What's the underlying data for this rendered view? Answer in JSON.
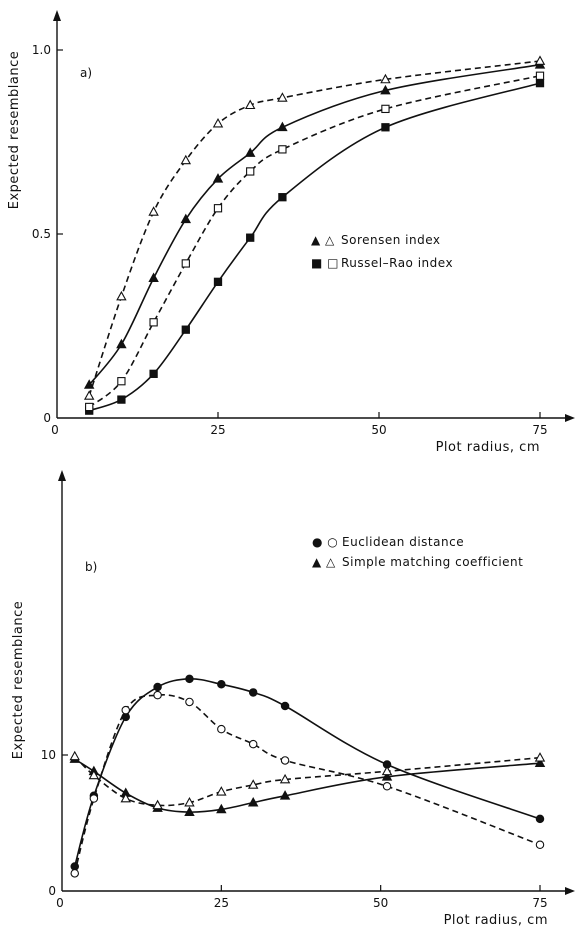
{
  "chart_data": [
    {
      "type": "line",
      "panel_label": "a)",
      "xlabel": "Plot radius, cm",
      "ylabel": "Expected resemblance",
      "xlim": [
        0,
        80
      ],
      "ylim": [
        0,
        1.05
      ],
      "xticks": [
        0,
        25,
        50,
        75
      ],
      "yticks": [
        0,
        0.5,
        1.0
      ],
      "xtick_labels": [
        "0",
        "25",
        "50",
        "75"
      ],
      "ytick_labels": [
        "0",
        "0.5",
        "1.0"
      ],
      "legend_position": "center-right",
      "legend": [
        {
          "symbols": "▲ △",
          "label": "Sorensen index"
        },
        {
          "symbols": "■ □",
          "label": "Russel–Rao index"
        }
      ],
      "series": [
        {
          "marker": "triangle-filled",
          "line": "solid",
          "x": [
            5,
            10,
            15,
            20,
            25,
            30,
            35,
            51,
            75
          ],
          "y": [
            0.09,
            0.2,
            0.38,
            0.54,
            0.65,
            0.72,
            0.79,
            0.89,
            0.96
          ]
        },
        {
          "marker": "triangle-open",
          "line": "dashed",
          "x": [
            5,
            10,
            15,
            20,
            25,
            30,
            35,
            51,
            75
          ],
          "y": [
            0.06,
            0.33,
            0.56,
            0.7,
            0.8,
            0.85,
            0.87,
            0.92,
            0.97
          ]
        },
        {
          "marker": "square-filled",
          "line": "solid",
          "x": [
            5,
            10,
            15,
            20,
            25,
            30,
            35,
            51,
            75
          ],
          "y": [
            0.02,
            0.05,
            0.12,
            0.24,
            0.37,
            0.49,
            0.6,
            0.79,
            0.91
          ]
        },
        {
          "marker": "square-open",
          "line": "dashed",
          "x": [
            5,
            10,
            15,
            20,
            25,
            30,
            35,
            51,
            75
          ],
          "y": [
            0.03,
            0.1,
            0.26,
            0.42,
            0.57,
            0.67,
            0.73,
            0.84,
            0.93
          ]
        }
      ]
    },
    {
      "type": "line",
      "panel_label": "b)",
      "xlabel": "Plot radius, cm",
      "ylabel": "Expected resemblance",
      "xlim": [
        0,
        80
      ],
      "ylim": [
        0,
        18
      ],
      "xticks": [
        0,
        25,
        50,
        75
      ],
      "yticks": [
        0,
        10
      ],
      "xtick_labels": [
        "0",
        "25",
        "50",
        "75"
      ],
      "ytick_labels": [
        "0",
        "10"
      ],
      "legend_position": "top-right",
      "legend": [
        {
          "symbols": "● ○",
          "label": "Euclidean distance"
        },
        {
          "symbols": "▲ △",
          "label": "Simple matching coefficient"
        }
      ],
      "series": [
        {
          "marker": "circle-filled",
          "line": "solid",
          "x": [
            2,
            5,
            10,
            15,
            20,
            25,
            30,
            35,
            51,
            75
          ],
          "y": [
            1.8,
            7.0,
            12.8,
            15.0,
            15.6,
            15.2,
            14.6,
            13.6,
            9.3,
            5.3
          ]
        },
        {
          "marker": "circle-open",
          "line": "dashed",
          "x": [
            2,
            5,
            10,
            15,
            20,
            25,
            30,
            35,
            51,
            75
          ],
          "y": [
            1.3,
            6.8,
            13.3,
            14.4,
            13.9,
            11.9,
            10.8,
            9.6,
            7.7,
            3.4
          ]
        },
        {
          "marker": "triangle-filled",
          "line": "solid",
          "x": [
            2,
            5,
            10,
            15,
            20,
            25,
            30,
            35,
            51,
            75
          ],
          "y": [
            9.7,
            8.8,
            7.2,
            6.1,
            5.8,
            6.0,
            6.5,
            7.0,
            8.4,
            9.4
          ]
        },
        {
          "marker": "triangle-open",
          "line": "dashed",
          "x": [
            2,
            5,
            10,
            15,
            20,
            25,
            30,
            35,
            51,
            75
          ],
          "y": [
            9.9,
            8.5,
            6.8,
            6.3,
            6.5,
            7.3,
            7.8,
            8.2,
            8.8,
            9.8
          ]
        }
      ]
    }
  ]
}
